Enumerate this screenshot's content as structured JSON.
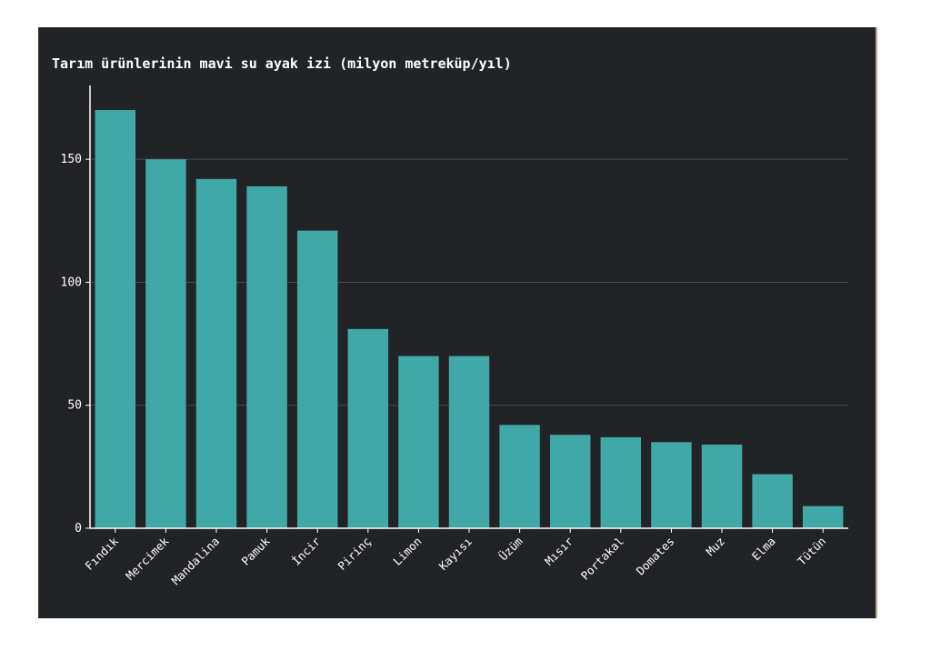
{
  "chart_data": {
    "type": "bar",
    "title": "Tarım ürünlerinin mavi su ayak izi (milyon metreküp/yıl)",
    "xlabel": "",
    "ylabel": "",
    "ylim": [
      0,
      180
    ],
    "yticks": [
      0,
      50,
      100,
      150
    ],
    "grid": true,
    "categories": [
      "Fındık",
      "Mercimek",
      "Mandalina",
      "Pamuk",
      "İncir",
      "Pirinç",
      "Limon",
      "Kayısı",
      "Üzüm",
      "Mısır",
      "Portakal",
      "Domates",
      "Muz",
      "Elma",
      "Tütün"
    ],
    "values": [
      170,
      150,
      142,
      139,
      121,
      81,
      70,
      70,
      42,
      38,
      37,
      35,
      34,
      22,
      9
    ],
    "colors": {
      "bar": "#40a8a6",
      "background": "#222326",
      "grid": "#4a4b4f",
      "axis": "#ffffff",
      "text": "#ffffff"
    }
  }
}
